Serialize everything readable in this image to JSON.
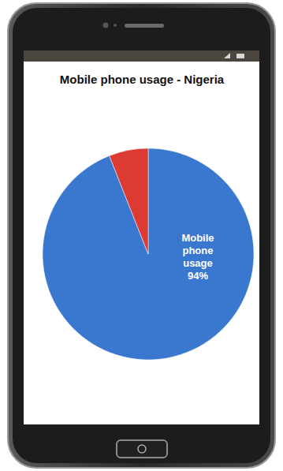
{
  "chart_data": {
    "type": "pie",
    "title": "Mobile phone usage - Nigeria",
    "categories": [
      "Mobile phone usage",
      null
    ],
    "values": [
      94,
      6
    ],
    "value_labels": [
      "94%",
      null
    ],
    "colors": [
      "#3a78d0",
      "#dc3b33"
    ]
  }
}
